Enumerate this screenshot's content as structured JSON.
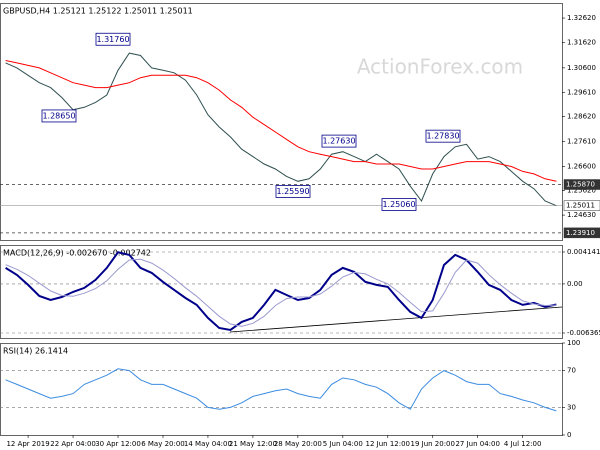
{
  "chart_data": [
    {
      "type": "line",
      "title": "GBPUSD,H4 1.25121 1.25122 1.25011 1.25011",
      "watermark": "ActionForex.com",
      "ylim": [
        1.2362,
        1.3323
      ],
      "yticks": [
        {
          "value": 1.3262,
          "label": "1.32620"
        },
        {
          "value": 1.3162,
          "label": "1.31620"
        },
        {
          "value": 1.306,
          "label": "1.30600"
        },
        {
          "value": 1.2961,
          "label": "1.29610"
        },
        {
          "value": 1.2862,
          "label": "1.28620"
        },
        {
          "value": 1.2761,
          "label": "1.27610"
        },
        {
          "value": 1.266,
          "label": "1.26600"
        },
        {
          "value": 1.2562,
          "label": "1.25620"
        },
        {
          "value": 1.2463,
          "label": "1.24630"
        }
      ],
      "series": [
        {
          "color": "#2f4f4f",
          "values": [
            1.308,
            1.306,
            1.303,
            1.3,
            1.298,
            1.294,
            1.289,
            1.29,
            1.292,
            1.295,
            1.305,
            1.312,
            1.311,
            1.306,
            1.305,
            1.304,
            1.301,
            1.295,
            1.287,
            1.282,
            1.278,
            1.273,
            1.27,
            1.267,
            1.265,
            1.262,
            1.26,
            1.261,
            1.265,
            1.271,
            1.272,
            1.27,
            1.268,
            1.271,
            1.268,
            1.265,
            1.258,
            1.252,
            1.263,
            1.27,
            1.274,
            1.275,
            1.269,
            1.27,
            1.268,
            1.264,
            1.26,
            1.257,
            1.252,
            1.2501
          ]
        },
        {
          "color": "#ff0000",
          "values": [
            1.309,
            1.308,
            1.307,
            1.306,
            1.304,
            1.302,
            1.3,
            1.299,
            1.298,
            1.298,
            1.299,
            1.3,
            1.302,
            1.303,
            1.303,
            1.303,
            1.303,
            1.302,
            1.3,
            1.297,
            1.293,
            1.29,
            1.286,
            1.283,
            1.28,
            1.277,
            1.274,
            1.272,
            1.271,
            1.27,
            1.269,
            1.268,
            1.268,
            1.267,
            1.267,
            1.267,
            1.266,
            1.265,
            1.265,
            1.266,
            1.267,
            1.268,
            1.268,
            1.268,
            1.267,
            1.266,
            1.264,
            1.263,
            1.261,
            1.26
          ]
        }
      ],
      "annotations": [
        {
          "value": 1.3176,
          "label": "1.31760"
        },
        {
          "value": 1.2865,
          "label": "1.28650"
        },
        {
          "value": 1.2763,
          "label": "1.27630"
        },
        {
          "value": 1.2559,
          "label": "1.25590"
        },
        {
          "value": 1.2506,
          "label": "1.25060"
        },
        {
          "value": 1.2783,
          "label": "1.27830"
        }
      ],
      "levels": [
        {
          "value": 1.2587,
          "label": "1.25870"
        },
        {
          "value": 1.25011,
          "label": "1.25011"
        },
        {
          "value": 1.2391,
          "label": "1.23910"
        }
      ]
    },
    {
      "type": "line",
      "title": "MACD(12,26,9) -0.002670 -0.002742",
      "ylim": [
        -0.007013,
        0.005049
      ],
      "yticks": [
        0.004141,
        {
          "value": 0,
          "label": "0.00"
        },
        -0.006365
      ],
      "series": [
        {
          "color": "#00008b",
          "values": [
            0.00208,
            0.00117,
            -0.00013,
            -0.00156,
            -0.00208,
            -0.00169,
            -0.00104,
            -0.00052,
            0.00052,
            0.00208,
            0.0041,
            0.00376,
            0.00208,
            0.00143,
            0.00026,
            -0.00078,
            -0.00182,
            -0.00272,
            -0.00441,
            -0.00571,
            -0.00597,
            -0.00493,
            -0.00441,
            -0.00272,
            -0.00078,
            -0.00143,
            -0.00208,
            -0.00182,
            -0.00078,
            0.00117,
            0.00208,
            0.00156,
            0.00026,
            -0.00013,
            -0.00039,
            -0.00208,
            -0.00363,
            -0.00441,
            -0.00208,
            0.00246,
            0.00376,
            0.00311,
            0.00156,
            -0.00013,
            -0.00078,
            -0.00208,
            -0.00272,
            -0.00246,
            -0.00298,
            -0.00267
          ]
        },
        {
          "color": "#9a9ad0",
          "values": [
            0.0025,
            0.0019,
            0.0011,
            0.0001,
            -0.0009,
            -0.0015,
            -0.0016,
            -0.0012,
            -0.0006,
            0.0004,
            0.0019,
            0.0031,
            0.0032,
            0.0027,
            0.0018,
            0.0007,
            -0.0005,
            -0.0016,
            -0.0029,
            -0.0042,
            -0.0052,
            -0.0055,
            -0.0051,
            -0.0042,
            -0.0028,
            -0.0019,
            -0.0017,
            -0.0017,
            -0.0013,
            -0.0003,
            0.0009,
            0.0015,
            0.0013,
            0.0006,
            0.0,
            -0.0011,
            -0.0024,
            -0.0036,
            -0.0035,
            -0.0012,
            0.0015,
            0.0031,
            0.0027,
            0.0012,
            -0.0001,
            -0.0012,
            -0.0022,
            -0.0026,
            -0.0028,
            -0.002742
          ]
        }
      ]
    },
    {
      "type": "line",
      "title": "RSI(14) 26.1414",
      "ylim": [
        0,
        100
      ],
      "yticks": [
        100,
        70,
        30,
        0
      ],
      "categories": [
        null,
        null,
        "12 Apr 2019",
        null,
        null,
        null,
        "22 Apr 04:00",
        null,
        null,
        null,
        "30 Apr 12:00",
        null,
        null,
        null,
        "6 May 20:00",
        null,
        null,
        null,
        "14 May 04:00",
        null,
        null,
        null,
        "21 May 12:00",
        null,
        null,
        null,
        "28 May 20:00",
        null,
        null,
        null,
        "5 Jun 04:00",
        null,
        null,
        null,
        "12 Jun 12:00",
        null,
        null,
        null,
        "19 Jun 20:00",
        null,
        null,
        null,
        "27 Jun 04:00",
        null,
        null,
        null,
        "4 Jul 12:00",
        null,
        null,
        null
      ],
      "series": [
        {
          "color": "#3c8ce0",
          "values": [
            60,
            55,
            50,
            45,
            40,
            42,
            45,
            55,
            60,
            65,
            72,
            70,
            60,
            55,
            55,
            50,
            45,
            40,
            30,
            28,
            30,
            35,
            42,
            45,
            48,
            50,
            45,
            42,
            40,
            55,
            62,
            60,
            55,
            52,
            45,
            35,
            28,
            50,
            62,
            70,
            65,
            58,
            55,
            55,
            45,
            42,
            38,
            35,
            30,
            26.1414
          ]
        }
      ]
    }
  ]
}
